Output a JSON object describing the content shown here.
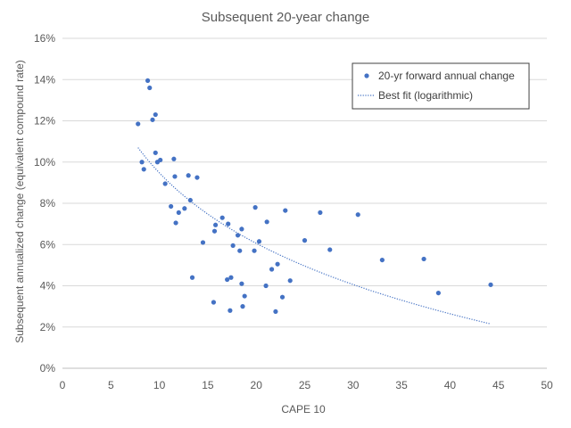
{
  "chart_data": {
    "type": "scatter",
    "title": "Subsequent 20-year change",
    "xlabel": "CAPE 10",
    "ylabel": "Subsequent annualized change (equivalent compound rate)",
    "xlim": [
      0,
      50
    ],
    "ylim": [
      0,
      16
    ],
    "x_ticks": [
      0,
      5,
      10,
      15,
      20,
      25,
      30,
      35,
      40,
      45,
      50
    ],
    "x_tick_labels": [
      "0",
      "5",
      "10",
      "15",
      "20",
      "25",
      "30",
      "35",
      "40",
      "45",
      "50"
    ],
    "y_ticks": [
      0,
      2,
      4,
      6,
      8,
      10,
      12,
      14,
      16
    ],
    "y_tick_labels": [
      "0%",
      "2%",
      "4%",
      "6%",
      "8%",
      "10%",
      "12%",
      "14%",
      "16%"
    ],
    "grid": "horizontal",
    "legend_position": "top-right",
    "series": [
      {
        "name": "20-yr forward annual change",
        "style": "markers",
        "color": "#4472c4",
        "points": [
          [
            7.8,
            11.85
          ],
          [
            8.2,
            10.0
          ],
          [
            8.4,
            9.65
          ],
          [
            8.8,
            13.95
          ],
          [
            9.0,
            13.6
          ],
          [
            9.3,
            12.05
          ],
          [
            9.6,
            12.3
          ],
          [
            9.6,
            10.45
          ],
          [
            9.8,
            10.0
          ],
          [
            10.1,
            10.1
          ],
          [
            10.6,
            8.95
          ],
          [
            11.2,
            7.85
          ],
          [
            11.5,
            10.15
          ],
          [
            11.6,
            9.3
          ],
          [
            11.7,
            7.05
          ],
          [
            12.0,
            7.55
          ],
          [
            12.6,
            7.75
          ],
          [
            13.0,
            9.35
          ],
          [
            13.2,
            8.15
          ],
          [
            13.4,
            4.4
          ],
          [
            13.9,
            9.25
          ],
          [
            14.5,
            6.1
          ],
          [
            15.6,
            3.2
          ],
          [
            15.7,
            6.65
          ],
          [
            15.8,
            6.95
          ],
          [
            16.5,
            7.3
          ],
          [
            17.0,
            4.3
          ],
          [
            17.1,
            7.0
          ],
          [
            17.3,
            2.8
          ],
          [
            17.4,
            4.4
          ],
          [
            17.6,
            5.95
          ],
          [
            18.1,
            6.45
          ],
          [
            18.3,
            5.7
          ],
          [
            18.5,
            6.75
          ],
          [
            18.5,
            4.1
          ],
          [
            18.6,
            3.0
          ],
          [
            18.8,
            3.5
          ],
          [
            19.8,
            5.7
          ],
          [
            19.9,
            7.8
          ],
          [
            20.3,
            6.15
          ],
          [
            21.0,
            4.0
          ],
          [
            21.1,
            7.1
          ],
          [
            21.6,
            4.8
          ],
          [
            22.0,
            2.75
          ],
          [
            22.2,
            5.05
          ],
          [
            22.7,
            3.45
          ],
          [
            23.0,
            7.65
          ],
          [
            23.5,
            4.25
          ],
          [
            25.0,
            6.2
          ],
          [
            26.6,
            7.55
          ],
          [
            27.6,
            5.75
          ],
          [
            30.5,
            7.45
          ],
          [
            33.0,
            5.25
          ],
          [
            37.3,
            5.3
          ],
          [
            38.8,
            3.65
          ],
          [
            44.2,
            4.05
          ]
        ]
      },
      {
        "name": "Best fit (logarithmic)",
        "style": "dotted-line",
        "color": "#4472c4",
        "fit": "logarithmic",
        "x_range": [
          7.8,
          44.2
        ],
        "curve": [
          [
            7.8,
            10.7
          ],
          [
            44.2,
            2.15
          ]
        ]
      }
    ]
  }
}
